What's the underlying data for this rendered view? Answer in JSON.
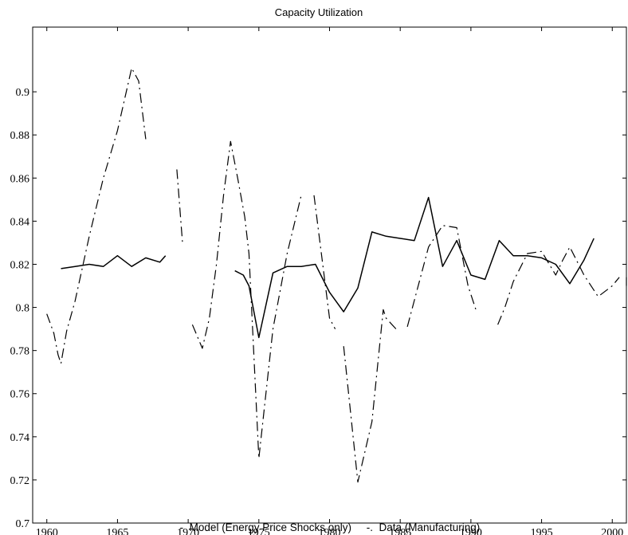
{
  "chart_data": {
    "type": "line",
    "title": "Capacity Utilization",
    "xlabel": "",
    "ylabel": "",
    "xlim": [
      1959,
      2001
    ],
    "ylim": [
      0.7,
      0.93
    ],
    "x_ticks": [
      1960,
      1965,
      1970,
      1975,
      1980,
      1985,
      1990,
      1995,
      2000
    ],
    "y_ticks": [
      0.7,
      0.72,
      0.74,
      0.76,
      0.78,
      0.8,
      0.82,
      0.84,
      0.86,
      0.88,
      0.9
    ],
    "grid": false,
    "legend_position": "bottom",
    "legend_text": "-  Model (Energy Price Shocks only)     -.  Data (Manufacturing)",
    "series": [
      {
        "name": "Model (Energy Price Shocks only)",
        "style": "solid",
        "segments": [
          [
            [
              1961,
              0.818
            ],
            [
              1962,
              0.819
            ],
            [
              1963,
              0.82
            ],
            [
              1964,
              0.819
            ],
            [
              1965,
              0.824
            ],
            [
              1966,
              0.819
            ],
            [
              1967,
              0.823
            ],
            [
              1968,
              0.821
            ],
            [
              1968.4,
              0.824
            ]
          ],
          [
            [
              1973.3,
              0.817
            ],
            [
              1973.9,
              0.815
            ],
            [
              1974.3,
              0.81
            ],
            [
              1975,
              0.786
            ],
            [
              1976,
              0.816
            ],
            [
              1977,
              0.819
            ],
            [
              1978,
              0.819
            ],
            [
              1979,
              0.82
            ],
            [
              1980,
              0.807
            ],
            [
              1981,
              0.798
            ],
            [
              1982,
              0.809
            ],
            [
              1983,
              0.835
            ],
            [
              1984,
              0.833
            ],
            [
              1985,
              0.832
            ],
            [
              1986,
              0.831
            ],
            [
              1987,
              0.851
            ],
            [
              1988,
              0.819
            ],
            [
              1989,
              0.831
            ],
            [
              1990,
              0.815
            ],
            [
              1991,
              0.813
            ],
            [
              1992,
              0.831
            ],
            [
              1993,
              0.824
            ],
            [
              1994,
              0.824
            ],
            [
              1995,
              0.823
            ],
            [
              1996,
              0.82
            ],
            [
              1997,
              0.811
            ],
            [
              1998,
              0.822
            ],
            [
              1998.7,
              0.832
            ]
          ]
        ]
      },
      {
        "name": "Data (Manufacturing)",
        "style": "dashdot",
        "segments": [
          [
            [
              1960,
              0.797
            ],
            [
              1960.5,
              0.788
            ],
            [
              1960.8,
              0.778
            ],
            [
              1961.0,
              0.774
            ],
            [
              1961.4,
              0.789
            ],
            [
              1962,
              0.803
            ],
            [
              1963,
              0.833
            ],
            [
              1964,
              0.86
            ],
            [
              1965,
              0.882
            ],
            [
              1966,
              0.911
            ],
            [
              1966.5,
              0.905
            ],
            [
              1967,
              0.878
            ]
          ],
          [
            [
              1969.2,
              0.864
            ],
            [
              1969.6,
              0.83
            ]
          ],
          [
            [
              1970.3,
              0.792
            ],
            [
              1971,
              0.781
            ],
            [
              1971.5,
              0.795
            ],
            [
              1972,
              0.82
            ],
            [
              1972.5,
              0.852
            ],
            [
              1973,
              0.877
            ],
            [
              1973.5,
              0.86
            ],
            [
              1974,
              0.842
            ],
            [
              1974.3,
              0.825
            ],
            [
              1975,
              0.73
            ],
            [
              1976,
              0.79
            ],
            [
              1977,
              0.825
            ],
            [
              1978,
              0.852
            ]
          ],
          [
            [
              1978.9,
              0.852
            ],
            [
              1980,
              0.795
            ],
            [
              1980.4,
              0.79
            ]
          ],
          [
            [
              1981,
              0.782
            ],
            [
              1982,
              0.719
            ],
            [
              1983,
              0.747
            ],
            [
              1983.8,
              0.799
            ],
            [
              1984,
              0.795
            ],
            [
              1984.7,
              0.79
            ]
          ],
          [
            [
              1985.5,
              0.791
            ],
            [
              1987,
              0.828
            ],
            [
              1988,
              0.838
            ],
            [
              1989,
              0.837
            ],
            [
              1989.8,
              0.81
            ],
            [
              1990.4,
              0.798
            ]
          ],
          [
            [
              1991.9,
              0.792
            ],
            [
              1992.4,
              0.8
            ],
            [
              1993,
              0.812
            ],
            [
              1994,
              0.825
            ],
            [
              1995,
              0.826
            ],
            [
              1996,
              0.815
            ],
            [
              1996.5,
              0.822
            ],
            [
              1997,
              0.828
            ],
            [
              1998,
              0.815
            ],
            [
              1999,
              0.805
            ],
            [
              2000,
              0.81
            ],
            [
              2000.5,
              0.814
            ]
          ],
          [
            [
              2001,
              0.81
            ],
            [
              2001,
              0.814
            ]
          ]
        ]
      }
    ]
  }
}
